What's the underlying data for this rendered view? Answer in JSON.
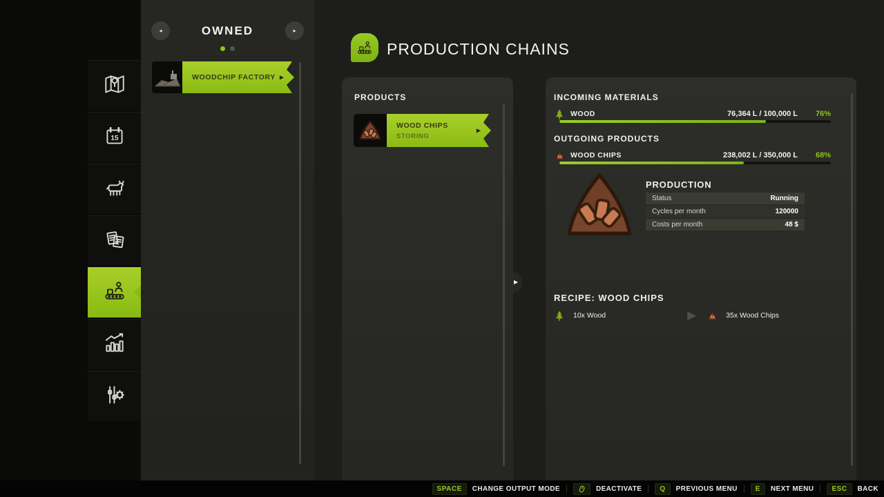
{
  "accent_color": "#8dc41e",
  "header": {
    "title": "PRODUCTION CHAINS",
    "icon": "production-chains-icon"
  },
  "sidebar": {
    "items": [
      {
        "id": "map",
        "icon": "map-icon",
        "active": false
      },
      {
        "id": "calendar",
        "icon": "calendar-icon",
        "active": false,
        "day": "15"
      },
      {
        "id": "animals",
        "icon": "cow-icon",
        "active": false
      },
      {
        "id": "contracts",
        "icon": "documents-icon",
        "active": false
      },
      {
        "id": "production-chains",
        "icon": "production-icon",
        "active": true
      },
      {
        "id": "statistics",
        "icon": "statistics-icon",
        "active": false
      },
      {
        "id": "settings",
        "icon": "settings-icon",
        "active": false
      }
    ]
  },
  "owned_panel": {
    "title": "OWNED",
    "prev_arrow": "◂",
    "next_arrow": "▸",
    "pagination": {
      "total": 2,
      "active_index": 0
    },
    "items": [
      {
        "label": "WOODCHIP FACTORY",
        "arrow": "▶"
      }
    ]
  },
  "products_panel": {
    "title": "PRODUCTS",
    "items": [
      {
        "label": "WOOD CHIPS",
        "status": "STORING",
        "icon": "wood-chips-icon",
        "arrow": "▶"
      }
    ],
    "expander_arrow": "▶"
  },
  "details_panel": {
    "incoming": {
      "title": "INCOMING MATERIALS",
      "rows": [
        {
          "icon": "tree-icon",
          "label": "WOOD",
          "amount": "76,364 L / 100,000 L",
          "percent_label": "76%",
          "percent": 76
        }
      ]
    },
    "outgoing": {
      "title": "OUTGOING PRODUCTS",
      "rows": [
        {
          "icon": "wood-chips-icon",
          "label": "WOOD CHIPS",
          "amount": "238,002 L / 350,000 L",
          "percent_label": "68%",
          "percent": 68
        }
      ]
    },
    "production": {
      "title": "PRODUCTION",
      "icon": "wood-chips-icon",
      "rows": [
        {
          "label": "Status",
          "value": "Running"
        },
        {
          "label": "Cycles per month",
          "value": "120000"
        },
        {
          "label": "Costs per month",
          "value": "48 $"
        }
      ]
    },
    "recipe": {
      "title": "RECIPE: WOOD CHIPS",
      "input": {
        "icon": "tree-icon",
        "label": "10x Wood"
      },
      "arrow": "▶",
      "output": {
        "icon": "wood-chips-icon",
        "label": "35x Wood Chips"
      }
    }
  },
  "bottom_bar": {
    "items": [
      {
        "key": "SPACE",
        "label": "CHANGE OUTPUT MODE"
      },
      {
        "key_icon": "mouse-icon",
        "label": "DEACTIVATE"
      },
      {
        "key": "Q",
        "label": "PREVIOUS MENU"
      },
      {
        "key": "E",
        "label": "NEXT MENU"
      },
      {
        "key": "ESC",
        "label": "BACK"
      }
    ]
  }
}
